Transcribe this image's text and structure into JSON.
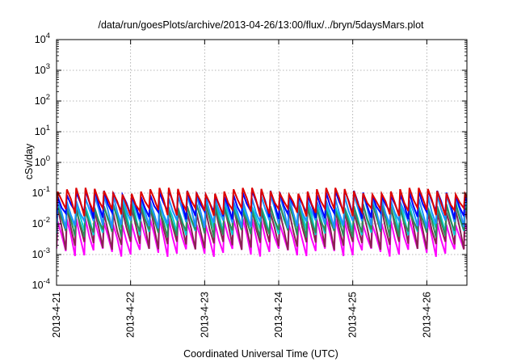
{
  "chart_data": {
    "type": "line",
    "title": "/data/run/goesPlots/archive/2013-04-26/13:00/flux/../bryn/5daysMars.plot",
    "xlabel": "Coordinated Universal Time (UTC)",
    "ylabel": "cSv/day",
    "yscale": "log",
    "ylim": [
      0.0001,
      10000
    ],
    "xlim": [
      "2013-04-21T00:00",
      "2013-04-26T13:00"
    ],
    "grid": true,
    "legend": "none",
    "y_ticks": [
      {
        "base": "10",
        "exp": "4"
      },
      {
        "base": "10",
        "exp": "3"
      },
      {
        "base": "10",
        "exp": "2"
      },
      {
        "base": "10",
        "exp": "1"
      },
      {
        "base": "10",
        "exp": "0"
      },
      {
        "base": "10",
        "exp": "-1"
      },
      {
        "base": "10",
        "exp": "-2"
      },
      {
        "base": "10",
        "exp": "-3"
      },
      {
        "base": "10",
        "exp": "-4"
      }
    ],
    "x_ticks": [
      "2013-4-21",
      "2013-4-22",
      "2013-4-23",
      "2013-4-24",
      "2013-4-25",
      "2013-4-26"
    ],
    "cycle_hours": 3,
    "series": [
      {
        "color": "#ff00ff",
        "peak": 0.012,
        "trough": 0.0012
      },
      {
        "color": "#8b2252",
        "peak": 0.03,
        "trough": 0.002
      },
      {
        "color": "#00ced1",
        "peak": 0.045,
        "trough": 0.006
      },
      {
        "color": "#2e8b57",
        "peak": 0.035,
        "trough": 0.005
      },
      {
        "color": "#1e90ff",
        "peak": 0.07,
        "trough": 0.01
      },
      {
        "color": "#0000ff",
        "peak": 0.1,
        "trough": 0.02
      },
      {
        "color": "#dd0000",
        "peak": 0.12,
        "trough": 0.025
      }
    ]
  }
}
